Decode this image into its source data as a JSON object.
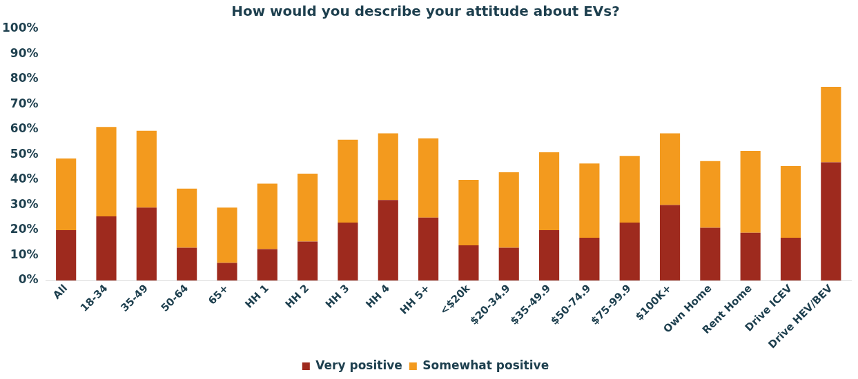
{
  "chart_data": {
    "type": "bar",
    "title": "How would you describe your attitude about EVs?",
    "stacked": true,
    "categories": [
      "All",
      "18-34",
      "35-49",
      "50-64",
      "65+",
      "HH 1",
      "HH 2",
      "HH 3",
      "HH 4",
      "HH 5+",
      "<$20k",
      "$20-34.9",
      "$35-49.9",
      "$50-74.9",
      "$75-99.9",
      "$100K+",
      "Own Home",
      "Rent Home",
      "Drive ICEV",
      "Drive HEV/BEV"
    ],
    "series": [
      {
        "name": "Very positive",
        "color": "#9e2a1e",
        "values": [
          20,
          25.5,
          29,
          13,
          7,
          12.5,
          15.5,
          23,
          32,
          25,
          14,
          13,
          20,
          17,
          23,
          30,
          21,
          19,
          17,
          47
        ]
      },
      {
        "name": "Somewhat positive",
        "color": "#f39a1e",
        "values": [
          28.5,
          35.5,
          30.5,
          23.5,
          22,
          26,
          27,
          33,
          26.5,
          31.5,
          26,
          30,
          31,
          29.5,
          26.5,
          28.5,
          26.5,
          32.5,
          28.5,
          30
        ]
      }
    ],
    "ylim": [
      0,
      100
    ],
    "yticks": [
      {
        "value": 0,
        "label": "0%"
      },
      {
        "value": 10,
        "label": "10%"
      },
      {
        "value": 20,
        "label": "20%"
      },
      {
        "value": 30,
        "label": "30%"
      },
      {
        "value": 40,
        "label": "40%"
      },
      {
        "value": 50,
        "label": "50%"
      },
      {
        "value": 60,
        "label": "60%"
      },
      {
        "value": 70,
        "label": "70%"
      },
      {
        "value": 80,
        "label": "80%"
      },
      {
        "value": 90,
        "label": "90%"
      },
      {
        "value": 100,
        "label": "100%"
      }
    ],
    "grid": false,
    "legend": "bottom"
  }
}
